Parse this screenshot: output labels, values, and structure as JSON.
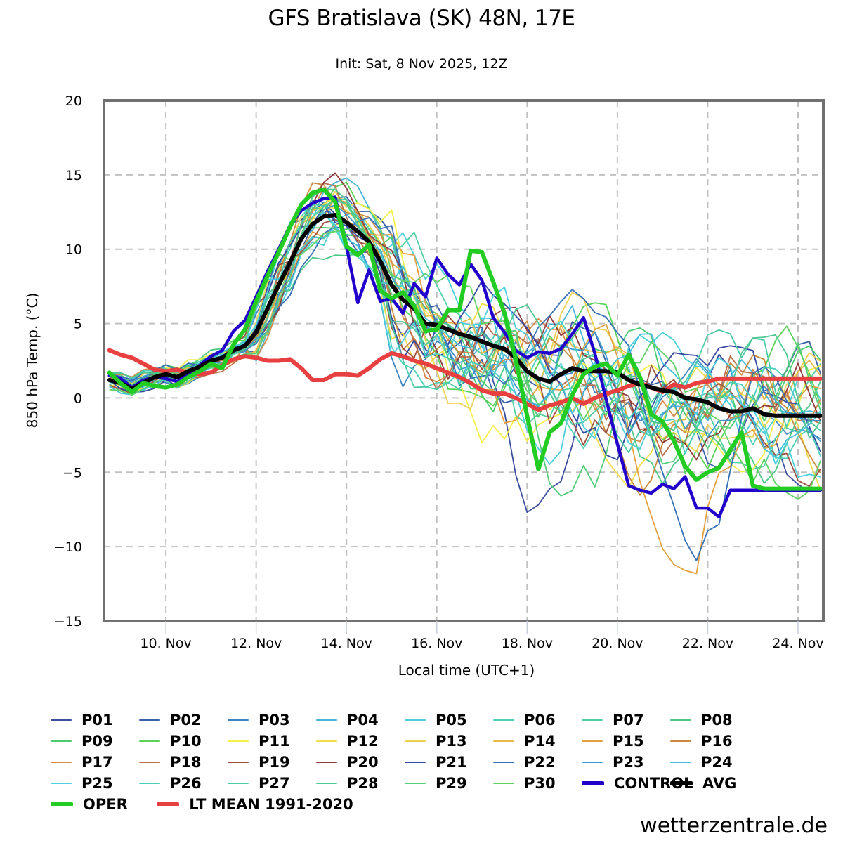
{
  "header": {
    "title": "GFS Bratislava (SK) 48N, 17E",
    "subtitle": "Init: Sat, 8 Nov 2025, 12Z"
  },
  "credit": "wetterzentrale.de",
  "chart_data": {
    "type": "line",
    "title": "GFS Bratislava (SK) 48N, 17E",
    "subtitle": "Init: Sat, 8 Nov 2025, 12Z",
    "xlabel": "Local time (UTC+1)",
    "ylabel": "850 hPa Temp. (°C)",
    "x_unit": "day of November 2025",
    "xlim": [
      8.63,
      24.56
    ],
    "ylim": [
      -15,
      20
    ],
    "yticks": [
      20,
      15,
      10,
      5,
      0,
      -5,
      -10,
      -15
    ],
    "ytick_labels": [
      "20",
      "15",
      "10",
      "5",
      "0",
      "−5",
      "−10",
      "−15"
    ],
    "xticks": [
      10,
      12,
      14,
      16,
      18,
      20,
      22,
      24
    ],
    "xtick_labels": [
      "10. Nov",
      "12. Nov",
      "14. Nov",
      "16. Nov",
      "18. Nov",
      "20. Nov",
      "22. Nov",
      "24. Nov"
    ],
    "grid": true,
    "legend_position": "bottom",
    "x": [
      8.75,
      9.0,
      9.25,
      9.5,
      9.75,
      10.0,
      10.25,
      10.5,
      10.75,
      11.0,
      11.25,
      11.5,
      11.75,
      12.0,
      12.25,
      12.5,
      12.75,
      13.0,
      13.25,
      13.5,
      13.75,
      14.0,
      14.25,
      14.5,
      14.75,
      15.0,
      15.25,
      15.5,
      15.75,
      16.0,
      16.25,
      16.5,
      16.75,
      17.0,
      17.25,
      17.5,
      17.75,
      18.0,
      18.25,
      18.5,
      18.75,
      19.0,
      19.25,
      19.5,
      19.75,
      20.0,
      20.25,
      20.5,
      20.75,
      21.0,
      21.25,
      21.5,
      21.75,
      22.0,
      22.25,
      22.5,
      22.75,
      23.0,
      23.25,
      23.5,
      23.75,
      24.0,
      24.25,
      24.5
    ],
    "series": [
      {
        "name": "OPER",
        "color": "#22cc22",
        "width": 6,
        "values": [
          1.7,
          1.0,
          0.4,
          1.0,
          0.8,
          0.7,
          0.9,
          1.4,
          1.8,
          2.3,
          2.0,
          3.6,
          4.6,
          6.5,
          8.2,
          9.8,
          11.5,
          13.0,
          13.8,
          14.0,
          13.2,
          10.2,
          9.6,
          10.3,
          7.2,
          6.7,
          7.1,
          6.2,
          4.5,
          4.6,
          5.9,
          5.9,
          9.9,
          9.8,
          7.8,
          5.7,
          2.6,
          -1.2,
          -4.8,
          -2.3,
          -1.7,
          0.2,
          1.6,
          2.1,
          2.3,
          1.5,
          2.9,
          1.4,
          -1.1,
          -1.6,
          -2.9,
          -4.6,
          -5.5,
          -5.0,
          -4.7,
          -3.5,
          -2.3,
          -5.9,
          -6.1,
          -6.1,
          -6.1,
          -6.1,
          -6.1,
          -6.1
        ]
      },
      {
        "name": "CONTROL",
        "color": "#2200cc",
        "width": 4.5,
        "values": [
          1.5,
          1.3,
          0.7,
          1.2,
          1.4,
          1.3,
          1.1,
          1.6,
          2.2,
          2.8,
          3.2,
          4.5,
          5.2,
          6.8,
          8.5,
          10.0,
          11.6,
          12.6,
          13.1,
          13.4,
          13.5,
          10.2,
          6.4,
          8.6,
          6.5,
          6.7,
          5.7,
          7.7,
          6.8,
          9.4,
          8.3,
          7.6,
          9.0,
          7.9,
          5.4,
          4.4,
          3.2,
          2.7,
          3.1,
          3.0,
          3.3,
          4.3,
          5.4,
          3.0,
          -0.1,
          -3.1,
          -5.9,
          -6.2,
          -6.4,
          -5.8,
          -6.1,
          -5.3,
          -7.4,
          -7.4,
          -8.0,
          -6.2,
          -6.2,
          -6.2,
          -6.2,
          -6.2,
          -6.2,
          -6.2,
          -6.2,
          -6.2
        ]
      },
      {
        "name": "AVG",
        "color": "#000000",
        "width": 6,
        "values": [
          1.2,
          1.0,
          0.6,
          1.0,
          1.4,
          1.6,
          1.4,
          1.8,
          2.1,
          2.5,
          2.7,
          3.2,
          3.5,
          4.4,
          6.0,
          7.6,
          9.1,
          10.7,
          11.7,
          12.2,
          12.3,
          11.8,
          11.2,
          10.5,
          9.2,
          7.6,
          6.6,
          6.0,
          5.0,
          4.9,
          4.6,
          4.3,
          4.1,
          3.8,
          3.5,
          3.3,
          2.7,
          1.8,
          1.3,
          1.1,
          1.6,
          2.0,
          1.8,
          1.8,
          1.8,
          1.7,
          1.2,
          0.9,
          0.7,
          0.5,
          0.4,
          0.0,
          -0.1,
          -0.3,
          -0.7,
          -0.9,
          -0.9,
          -0.7,
          -1.1,
          -1.2,
          -1.2,
          -1.2,
          -1.2,
          -1.2
        ]
      },
      {
        "name": "LT MEAN 1991-2020",
        "color": "#e84040",
        "width": 6,
        "values": [
          3.2,
          2.9,
          2.7,
          2.3,
          1.9,
          1.8,
          1.9,
          1.7,
          1.6,
          1.7,
          2.2,
          2.6,
          2.8,
          2.7,
          2.5,
          2.5,
          2.6,
          2.0,
          1.2,
          1.2,
          1.6,
          1.6,
          1.5,
          2.0,
          2.6,
          3.0,
          2.8,
          2.5,
          2.3,
          2.0,
          1.7,
          1.4,
          1.0,
          0.5,
          0.3,
          0.3,
          0.0,
          -0.4,
          -0.8,
          -0.5,
          -0.3,
          0.0,
          -0.4,
          0.0,
          0.3,
          0.5,
          0.8,
          1.0,
          0.7,
          0.4,
          0.9,
          0.7,
          1.0,
          1.1,
          1.3,
          1.3,
          1.3,
          1.3,
          1.3,
          1.3,
          1.3,
          1.3,
          1.3,
          1.3
        ]
      }
    ],
    "members": [
      {
        "name": "P01",
        "color": "#3b4f9e"
      },
      {
        "name": "P02",
        "color": "#3a62a8"
      },
      {
        "name": "P03",
        "color": "#3e86c2"
      },
      {
        "name": "P04",
        "color": "#45b4d8"
      },
      {
        "name": "P05",
        "color": "#4ccfd8"
      },
      {
        "name": "P06",
        "color": "#4fd0b8"
      },
      {
        "name": "P07",
        "color": "#50cfa0"
      },
      {
        "name": "P08",
        "color": "#4cc886"
      },
      {
        "name": "P09",
        "color": "#4ccc70"
      },
      {
        "name": "P10",
        "color": "#5ad25a"
      },
      {
        "name": "P11",
        "color": "#f3f04a"
      },
      {
        "name": "P12",
        "color": "#f2dc4a"
      },
      {
        "name": "P13",
        "color": "#ecd050"
      },
      {
        "name": "P14",
        "color": "#e8b848"
      },
      {
        "name": "P15",
        "color": "#e3a040"
      },
      {
        "name": "P16",
        "color": "#c98a3c"
      },
      {
        "name": "P17",
        "color": "#d58a4a"
      },
      {
        "name": "P18",
        "color": "#b8704e"
      },
      {
        "name": "P19",
        "color": "#a05040"
      },
      {
        "name": "P20",
        "color": "#8e3c3c"
      },
      {
        "name": "P21",
        "color": "#3448a0"
      },
      {
        "name": "P22",
        "color": "#3670b6"
      },
      {
        "name": "P23",
        "color": "#3c9ad0"
      },
      {
        "name": "P24",
        "color": "#44c0dc"
      },
      {
        "name": "P25",
        "color": "#4cd0e0"
      },
      {
        "name": "P26",
        "color": "#48cfc0"
      },
      {
        "name": "P27",
        "color": "#4ccaa8"
      },
      {
        "name": "P28",
        "color": "#4cc890"
      },
      {
        "name": "P29",
        "color": "#54cc78"
      },
      {
        "name": "P30",
        "color": "#62d266"
      }
    ]
  },
  "legend": {
    "items": [
      {
        "label": "P01",
        "color": "#3b4f9e",
        "thick": false
      },
      {
        "label": "P02",
        "color": "#3a62a8",
        "thick": false
      },
      {
        "label": "P03",
        "color": "#3e86c2",
        "thick": false
      },
      {
        "label": "P04",
        "color": "#45b4d8",
        "thick": false
      },
      {
        "label": "P05",
        "color": "#4ccfd8",
        "thick": false
      },
      {
        "label": "P06",
        "color": "#4fd0b8",
        "thick": false
      },
      {
        "label": "P07",
        "color": "#50cfa0",
        "thick": false
      },
      {
        "label": "P08",
        "color": "#4cc886",
        "thick": false
      },
      {
        "label": "P09",
        "color": "#4ccc70",
        "thick": false
      },
      {
        "label": "P10",
        "color": "#5ad25a",
        "thick": false
      },
      {
        "label": "P11",
        "color": "#f3f04a",
        "thick": false
      },
      {
        "label": "P12",
        "color": "#f2dc4a",
        "thick": false
      },
      {
        "label": "P13",
        "color": "#ecd050",
        "thick": false
      },
      {
        "label": "P14",
        "color": "#e8b848",
        "thick": false
      },
      {
        "label": "P15",
        "color": "#e3a040",
        "thick": false
      },
      {
        "label": "P16",
        "color": "#c98a3c",
        "thick": false
      },
      {
        "label": "P17",
        "color": "#d58a4a",
        "thick": false
      },
      {
        "label": "P18",
        "color": "#b8704e",
        "thick": false
      },
      {
        "label": "P19",
        "color": "#a05040",
        "thick": false
      },
      {
        "label": "P20",
        "color": "#8e3c3c",
        "thick": false
      },
      {
        "label": "P21",
        "color": "#3448a0",
        "thick": false
      },
      {
        "label": "P22",
        "color": "#3670b6",
        "thick": false
      },
      {
        "label": "P23",
        "color": "#3c9ad0",
        "thick": false
      },
      {
        "label": "P24",
        "color": "#44c0dc",
        "thick": false
      },
      {
        "label": "P25",
        "color": "#4cd0e0",
        "thick": false
      },
      {
        "label": "P26",
        "color": "#48cfc0",
        "thick": false
      },
      {
        "label": "P27",
        "color": "#4ccaa8",
        "thick": false
      },
      {
        "label": "P28",
        "color": "#4cc890",
        "thick": false
      },
      {
        "label": "P29",
        "color": "#54cc78",
        "thick": false
      },
      {
        "label": "P30",
        "color": "#62d266",
        "thick": false
      },
      {
        "label": "CONTROL",
        "color": "#2200cc",
        "thick": true
      },
      {
        "label": "AVG",
        "color": "#000000",
        "thick": true
      },
      {
        "label": "OPER",
        "color": "#22cc22",
        "thick": true
      },
      {
        "label": "LT MEAN 1991-2020",
        "color": "#e84040",
        "thick": true
      }
    ]
  }
}
